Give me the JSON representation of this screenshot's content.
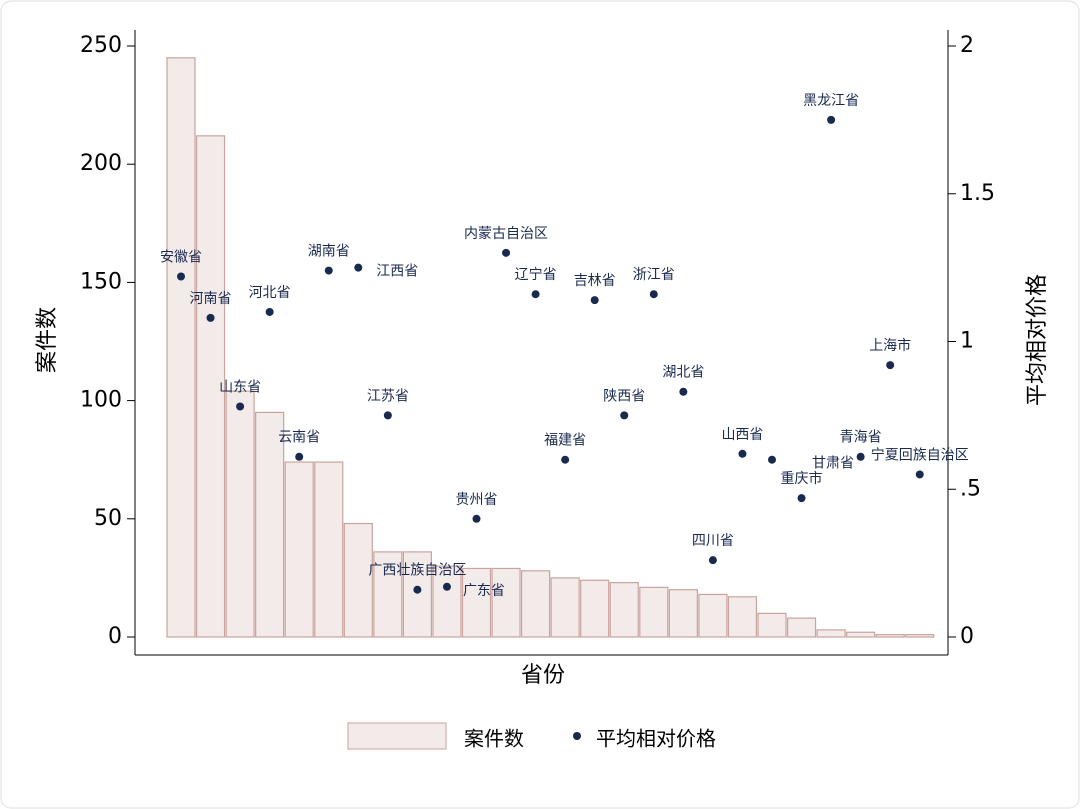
{
  "chart_data": {
    "type": "bar-scatter",
    "xlabel": "省份",
    "ylabel": "案件数",
    "y2label": "平均相对价格",
    "categories": [
      "安徽省",
      "河南省",
      "山东省",
      "河北省",
      "云南省",
      "湖南省",
      "江西省",
      "江苏省",
      "广西壮族自治区",
      "广东省",
      "贵州省",
      "内蒙古自治区",
      "辽宁省",
      "福建省",
      "吉林省",
      "陕西省",
      "浙江省",
      "湖北省",
      "四川省",
      "山西省",
      "甘肃省",
      "重庆市",
      "黑龙江省",
      "青海省",
      "上海市",
      "宁夏回族自治区"
    ],
    "series": [
      {
        "name": "案件数",
        "type": "bar",
        "color": "#f3ebea",
        "edge_color": "#c9a39d",
        "values": [
          245,
          212,
          104,
          95,
          74,
          74,
          48,
          36,
          36,
          30,
          29,
          29,
          28,
          25,
          24,
          23,
          21,
          20,
          18,
          17,
          10,
          8,
          3,
          2,
          1,
          1
        ]
      },
      {
        "name": "平均相对价格",
        "type": "scatter",
        "axis": "y2",
        "color": "#1a2a4f",
        "values": [
          1.22,
          1.08,
          0.78,
          1.1,
          0.61,
          1.24,
          1.25,
          0.75,
          0.16,
          0.17,
          0.4,
          1.3,
          1.16,
          0.6,
          1.14,
          0.75,
          1.16,
          0.83,
          0.26,
          0.62,
          0.6,
          0.47,
          1.75,
          0.61,
          0.92,
          0.55
        ]
      }
    ],
    "ylim": [
      0,
      250
    ],
    "yticks": [
      0,
      50,
      100,
      150,
      200,
      250
    ],
    "y2lim": [
      0,
      2
    ],
    "y2ticks": [
      0,
      {
        "value": 0.5,
        "label": ".5"
      },
      1,
      1.5,
      2
    ],
    "legend": "bottom"
  }
}
